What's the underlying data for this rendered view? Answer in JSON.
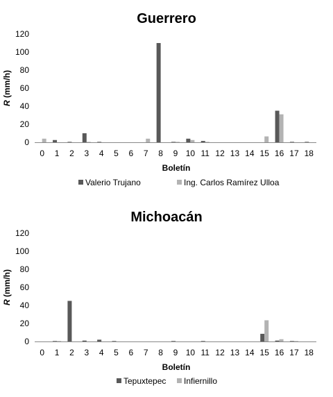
{
  "chart_data": [
    {
      "type": "bar",
      "title": "Guerrero",
      "xlabel": "Boletín",
      "ylabel_italic": "R",
      "ylabel_rest": " (mm/h)",
      "ylim": [
        0,
        120
      ],
      "yticks": [
        "0",
        "20",
        "40",
        "60",
        "80",
        "100",
        "120"
      ],
      "grid": false,
      "legend_position": "bottom",
      "categories": [
        "0",
        "1",
        "2",
        "3",
        "4",
        "5",
        "6",
        "7",
        "8",
        "9",
        "10",
        "11",
        "12",
        "13",
        "14",
        "15",
        "16",
        "17",
        "18"
      ],
      "series": [
        {
          "name": "Valerio Trujano",
          "color": "#595959",
          "values": [
            0,
            2.5,
            0.5,
            10,
            0.5,
            0,
            0,
            0,
            110,
            0.5,
            4,
            1.5,
            0,
            0,
            0,
            0,
            35,
            0.5,
            0.5
          ]
        },
        {
          "name": "Ing. Carlos Ramírez Ulloa",
          "color": "#b3b3b3",
          "values": [
            4,
            0,
            0,
            0.5,
            0,
            0,
            0,
            4,
            0,
            0.5,
            2.5,
            0.5,
            0,
            0,
            0,
            6.5,
            31,
            0,
            0
          ]
        }
      ]
    },
    {
      "type": "bar",
      "title": "Michoacán",
      "xlabel": "Boletín",
      "ylabel_italic": "R",
      "ylabel_rest": " (mm/h)",
      "ylim": [
        0,
        120
      ],
      "yticks": [
        "0",
        "20",
        "40",
        "60",
        "80",
        "100",
        "120"
      ],
      "grid": false,
      "legend_position": "bottom",
      "categories": [
        "0",
        "1",
        "2",
        "3",
        "4",
        "5",
        "6",
        "7",
        "8",
        "9",
        "10",
        "11",
        "12",
        "13",
        "14",
        "15",
        "16",
        "17",
        "18"
      ],
      "series": [
        {
          "name": "Tepuxtepec",
          "color": "#595959",
          "values": [
            0,
            0.5,
            45,
            1,
            2,
            0.5,
            0,
            0,
            0,
            0.5,
            0,
            0.5,
            0,
            0,
            0,
            8.5,
            1,
            0.5,
            0
          ]
        },
        {
          "name": "Infiernillo",
          "color": "#b3b3b3",
          "values": [
            0,
            0.5,
            0,
            0,
            0,
            0,
            0,
            0,
            0,
            0,
            0,
            0,
            0,
            0,
            0,
            23.5,
            2.5,
            0.5,
            0
          ]
        }
      ]
    }
  ]
}
